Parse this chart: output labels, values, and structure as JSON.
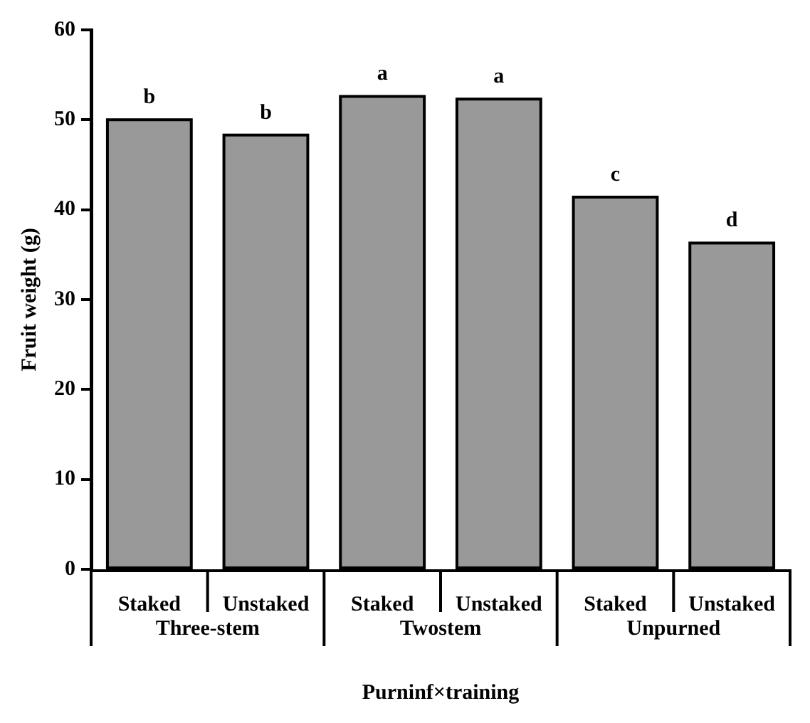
{
  "chart_data": {
    "type": "bar",
    "xlabel": "Purninf×training",
    "ylabel": "Fruit weight (g)",
    "categories": [
      "Staked",
      "Unstaked",
      "Staked",
      "Unstaked",
      "Staked",
      "Unstaked"
    ],
    "values": [
      50.0,
      48.3,
      52.6,
      52.3,
      41.4,
      36.3
    ],
    "value_labels": [
      "b",
      "b",
      "a",
      "a",
      "c",
      "d"
    ],
    "color": "#999999",
    "ylim": [
      0,
      60
    ],
    "yticks": [
      0,
      10,
      20,
      30,
      40,
      50,
      60
    ],
    "annotations": [
      "Three-stem",
      "Twostem",
      "Unpurned"
    ]
  }
}
